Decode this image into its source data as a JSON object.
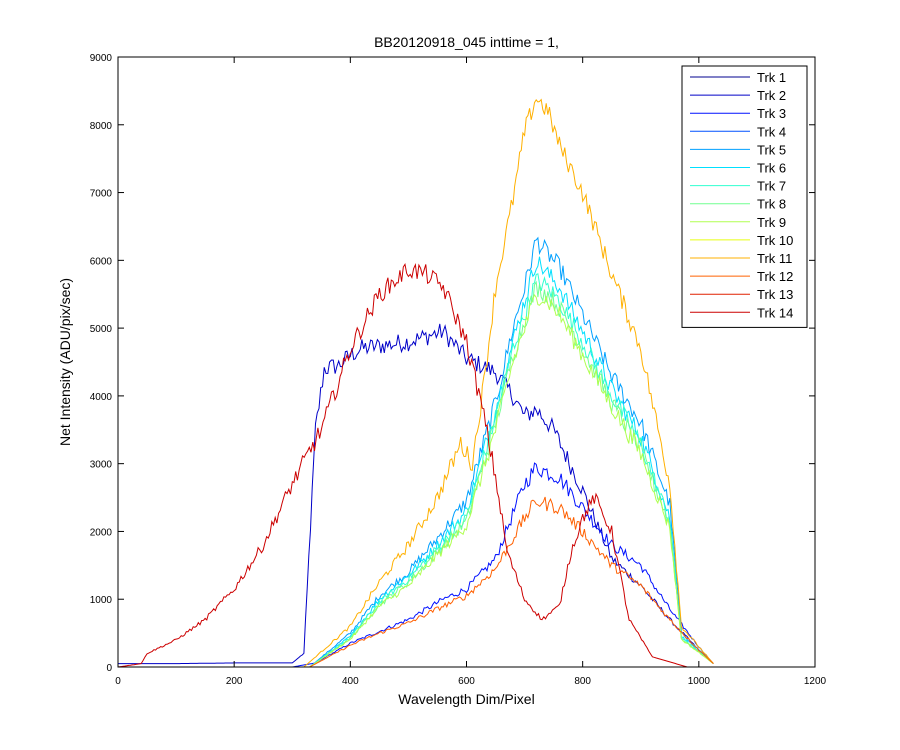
{
  "chart_data": {
    "type": "line",
    "title": "BB20120918_045 inttime = 1,",
    "xlabel": "Wavelength Dim/Pixel",
    "ylabel": "Net Intensity (ADU/pix/sec)",
    "xlim": [
      0,
      1200
    ],
    "ylim": [
      0,
      9000
    ],
    "xticks": [
      0,
      200,
      400,
      600,
      800,
      1000,
      1200
    ],
    "yticks": [
      0,
      1000,
      2000,
      3000,
      4000,
      5000,
      6000,
      7000,
      8000,
      9000
    ],
    "grid": false,
    "legend_position": "top-right",
    "series": [
      {
        "name": "Trk 1",
        "color": "#00008F",
        "points": [
          [
            0,
            0
          ],
          [
            200,
            0
          ],
          [
            400,
            0
          ],
          [
            600,
            0
          ],
          [
            800,
            0
          ],
          [
            1000,
            0
          ],
          [
            1025,
            0
          ]
        ]
      },
      {
        "name": "Trk 2",
        "color": "#0000C8",
        "points": [
          [
            0,
            50
          ],
          [
            100,
            50
          ],
          [
            200,
            60
          ],
          [
            300,
            60
          ],
          [
            320,
            200
          ],
          [
            340,
            3500
          ],
          [
            355,
            4400
          ],
          [
            380,
            4450
          ],
          [
            400,
            4600
          ],
          [
            420,
            4700
          ],
          [
            500,
            4800
          ],
          [
            560,
            4950
          ],
          [
            600,
            4550
          ],
          [
            650,
            4350
          ],
          [
            680,
            4000
          ],
          [
            700,
            3700
          ],
          [
            720,
            3800
          ],
          [
            750,
            3500
          ],
          [
            800,
            2600
          ],
          [
            850,
            1600
          ],
          [
            900,
            1200
          ],
          [
            950,
            700
          ],
          [
            1000,
            250
          ],
          [
            1025,
            50
          ]
        ]
      },
      {
        "name": "Trk 3",
        "color": "#0010FF",
        "points": [
          [
            0,
            0
          ],
          [
            300,
            0
          ],
          [
            340,
            60
          ],
          [
            400,
            350
          ],
          [
            500,
            700
          ],
          [
            560,
            1000
          ],
          [
            600,
            1150
          ],
          [
            650,
            1600
          ],
          [
            700,
            2700
          ],
          [
            720,
            2950
          ],
          [
            760,
            2800
          ],
          [
            800,
            2350
          ],
          [
            850,
            1800
          ],
          [
            900,
            1500
          ],
          [
            950,
            850
          ],
          [
            1000,
            300
          ],
          [
            1025,
            50
          ]
        ]
      },
      {
        "name": "Trk 4",
        "color": "#0050FF",
        "points": [
          [
            0,
            0
          ],
          [
            300,
            0
          ],
          [
            320,
            0
          ],
          [
            1025,
            0
          ]
        ]
      },
      {
        "name": "Trk 5",
        "color": "#00A0FF",
        "points": [
          [
            0,
            0
          ],
          [
            330,
            0
          ],
          [
            400,
            500
          ],
          [
            450,
            1050
          ],
          [
            500,
            1400
          ],
          [
            550,
            1900
          ],
          [
            600,
            2450
          ],
          [
            650,
            3900
          ],
          [
            680,
            5000
          ],
          [
            700,
            5600
          ],
          [
            720,
            6300
          ],
          [
            740,
            6100
          ],
          [
            760,
            5900
          ],
          [
            800,
            5200
          ],
          [
            850,
            4300
          ],
          [
            900,
            3600
          ],
          [
            950,
            2400
          ],
          [
            970,
            500
          ],
          [
            1025,
            50
          ]
        ]
      },
      {
        "name": "Trk 6",
        "color": "#00E0FF",
        "points": [
          [
            0,
            0
          ],
          [
            330,
            0
          ],
          [
            400,
            450
          ],
          [
            450,
            1000
          ],
          [
            500,
            1350
          ],
          [
            550,
            1800
          ],
          [
            600,
            2300
          ],
          [
            650,
            3800
          ],
          [
            680,
            4800
          ],
          [
            700,
            5400
          ],
          [
            720,
            6000
          ],
          [
            740,
            5800
          ],
          [
            760,
            5600
          ],
          [
            800,
            4950
          ],
          [
            850,
            4100
          ],
          [
            900,
            3400
          ],
          [
            950,
            2200
          ],
          [
            970,
            450
          ],
          [
            1025,
            50
          ]
        ]
      },
      {
        "name": "Trk 7",
        "color": "#30FFD0",
        "points": [
          [
            0,
            0
          ],
          [
            330,
            0
          ],
          [
            400,
            430
          ],
          [
            450,
            950
          ],
          [
            500,
            1300
          ],
          [
            550,
            1750
          ],
          [
            600,
            2200
          ],
          [
            650,
            3700
          ],
          [
            680,
            4700
          ],
          [
            700,
            5200
          ],
          [
            720,
            5700
          ],
          [
            740,
            5600
          ],
          [
            760,
            5400
          ],
          [
            800,
            4800
          ],
          [
            850,
            4000
          ],
          [
            900,
            3300
          ],
          [
            950,
            2150
          ],
          [
            970,
            430
          ],
          [
            1025,
            50
          ]
        ]
      },
      {
        "name": "Trk 8",
        "color": "#70FF90",
        "points": [
          [
            0,
            0
          ],
          [
            330,
            0
          ],
          [
            400,
            420
          ],
          [
            450,
            920
          ],
          [
            500,
            1250
          ],
          [
            550,
            1700
          ],
          [
            600,
            2150
          ],
          [
            650,
            3600
          ],
          [
            680,
            4600
          ],
          [
            700,
            5100
          ],
          [
            720,
            5600
          ],
          [
            740,
            5500
          ],
          [
            760,
            5300
          ],
          [
            800,
            4700
          ],
          [
            850,
            3900
          ],
          [
            900,
            3200
          ],
          [
            950,
            2100
          ],
          [
            970,
            420
          ],
          [
            1025,
            50
          ]
        ]
      },
      {
        "name": "Trk 9",
        "color": "#B0FF50",
        "points": [
          [
            0,
            0
          ],
          [
            330,
            0
          ],
          [
            400,
            410
          ],
          [
            450,
            900
          ],
          [
            500,
            1200
          ],
          [
            550,
            1650
          ],
          [
            600,
            2100
          ],
          [
            650,
            3500
          ],
          [
            680,
            4500
          ],
          [
            700,
            5000
          ],
          [
            720,
            5500
          ],
          [
            740,
            5400
          ],
          [
            760,
            5200
          ],
          [
            800,
            4600
          ],
          [
            850,
            3850
          ],
          [
            900,
            3150
          ],
          [
            950,
            2050
          ],
          [
            970,
            410
          ],
          [
            1025,
            50
          ]
        ]
      },
      {
        "name": "Trk 10",
        "color": "#E8FF10",
        "points": [
          [
            0,
            0
          ],
          [
            300,
            0
          ],
          [
            1025,
            0
          ]
        ]
      },
      {
        "name": "Trk 11",
        "color": "#FFB000",
        "points": [
          [
            0,
            0
          ],
          [
            320,
            0
          ],
          [
            400,
            600
          ],
          [
            450,
            1250
          ],
          [
            500,
            1800
          ],
          [
            550,
            2500
          ],
          [
            590,
            3300
          ],
          [
            610,
            3000
          ],
          [
            630,
            4200
          ],
          [
            650,
            5600
          ],
          [
            680,
            6900
          ],
          [
            700,
            7900
          ],
          [
            720,
            8400
          ],
          [
            740,
            8200
          ],
          [
            760,
            7700
          ],
          [
            800,
            7000
          ],
          [
            850,
            5800
          ],
          [
            900,
            4700
          ],
          [
            950,
            2700
          ],
          [
            970,
            600
          ],
          [
            1025,
            50
          ]
        ]
      },
      {
        "name": "Trk 12",
        "color": "#FF6000",
        "points": [
          [
            0,
            0
          ],
          [
            330,
            0
          ],
          [
            400,
            320
          ],
          [
            450,
            500
          ],
          [
            500,
            650
          ],
          [
            560,
            900
          ],
          [
            600,
            1050
          ],
          [
            650,
            1450
          ],
          [
            700,
            2200
          ],
          [
            720,
            2450
          ],
          [
            760,
            2350
          ],
          [
            800,
            2000
          ],
          [
            850,
            1500
          ],
          [
            900,
            1200
          ],
          [
            950,
            700
          ],
          [
            1000,
            250
          ],
          [
            1025,
            50
          ]
        ]
      },
      {
        "name": "Trk 13",
        "color": "#E02000",
        "points": [
          [
            0,
            0
          ],
          [
            200,
            0
          ],
          [
            1025,
            0
          ]
        ]
      },
      {
        "name": "Trk 14",
        "color": "#CC0000",
        "points": [
          [
            0,
            0
          ],
          [
            40,
            50
          ],
          [
            50,
            200
          ],
          [
            100,
            400
          ],
          [
            150,
            700
          ],
          [
            200,
            1150
          ],
          [
            250,
            1800
          ],
          [
            300,
            2700
          ],
          [
            350,
            3500
          ],
          [
            400,
            4700
          ],
          [
            450,
            5500
          ],
          [
            500,
            5870
          ],
          [
            530,
            5800
          ],
          [
            560,
            5600
          ],
          [
            600,
            4800
          ],
          [
            630,
            3700
          ],
          [
            650,
            2800
          ],
          [
            670,
            1700
          ],
          [
            700,
            1000
          ],
          [
            730,
            700
          ],
          [
            760,
            900
          ],
          [
            780,
            1700
          ],
          [
            800,
            2200
          ],
          [
            820,
            2500
          ],
          [
            850,
            2000
          ],
          [
            880,
            700
          ],
          [
            920,
            150
          ],
          [
            980,
            0
          ],
          [
            1025,
            0
          ]
        ]
      }
    ]
  }
}
